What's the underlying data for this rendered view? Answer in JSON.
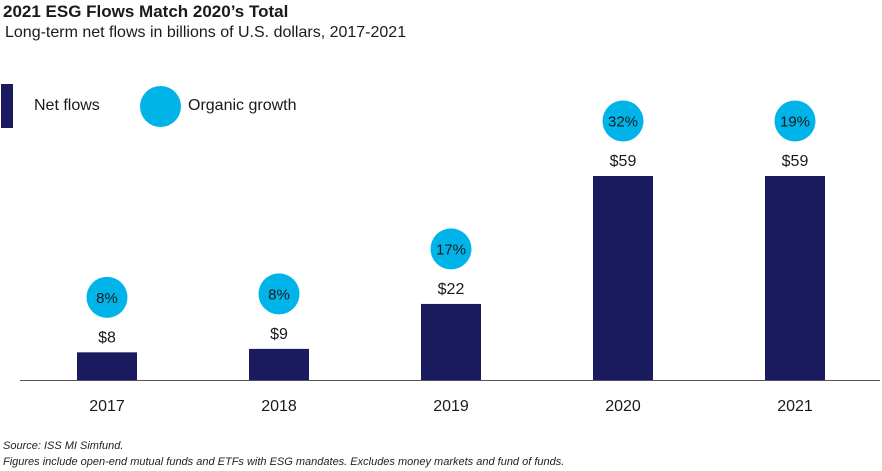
{
  "title": "2021 ESG Flows Match 2020’s Total",
  "subtitle": "Long-term net flows in billions of U.S. dollars, 2017-2021",
  "legend": {
    "net_flows_label": "Net flows",
    "organic_growth_label": "Organic growth"
  },
  "colors": {
    "bar": "#1a1a5e",
    "circle": "#00b4ea",
    "axis": "#555555"
  },
  "chart_data": {
    "type": "bar",
    "categories": [
      "2017",
      "2018",
      "2019",
      "2020",
      "2021"
    ],
    "values": [
      8,
      9,
      22,
      59,
      59
    ],
    "value_labels": [
      "$8",
      "$9",
      "$22",
      "$59",
      "$59"
    ],
    "organic_growth_labels": [
      "8%",
      "8%",
      "17%",
      "32%",
      "19%"
    ],
    "organic_growth_pct": [
      8,
      8,
      17,
      32,
      19
    ],
    "ylim": [
      0,
      59
    ],
    "grid": false,
    "legend_position": "top-left"
  },
  "footnotes": {
    "source": "Source: ISS MI Simfund.",
    "note": "Figures include open-end mutual funds and ETFs with ESG mandates. Excludes money markets and fund of funds."
  }
}
